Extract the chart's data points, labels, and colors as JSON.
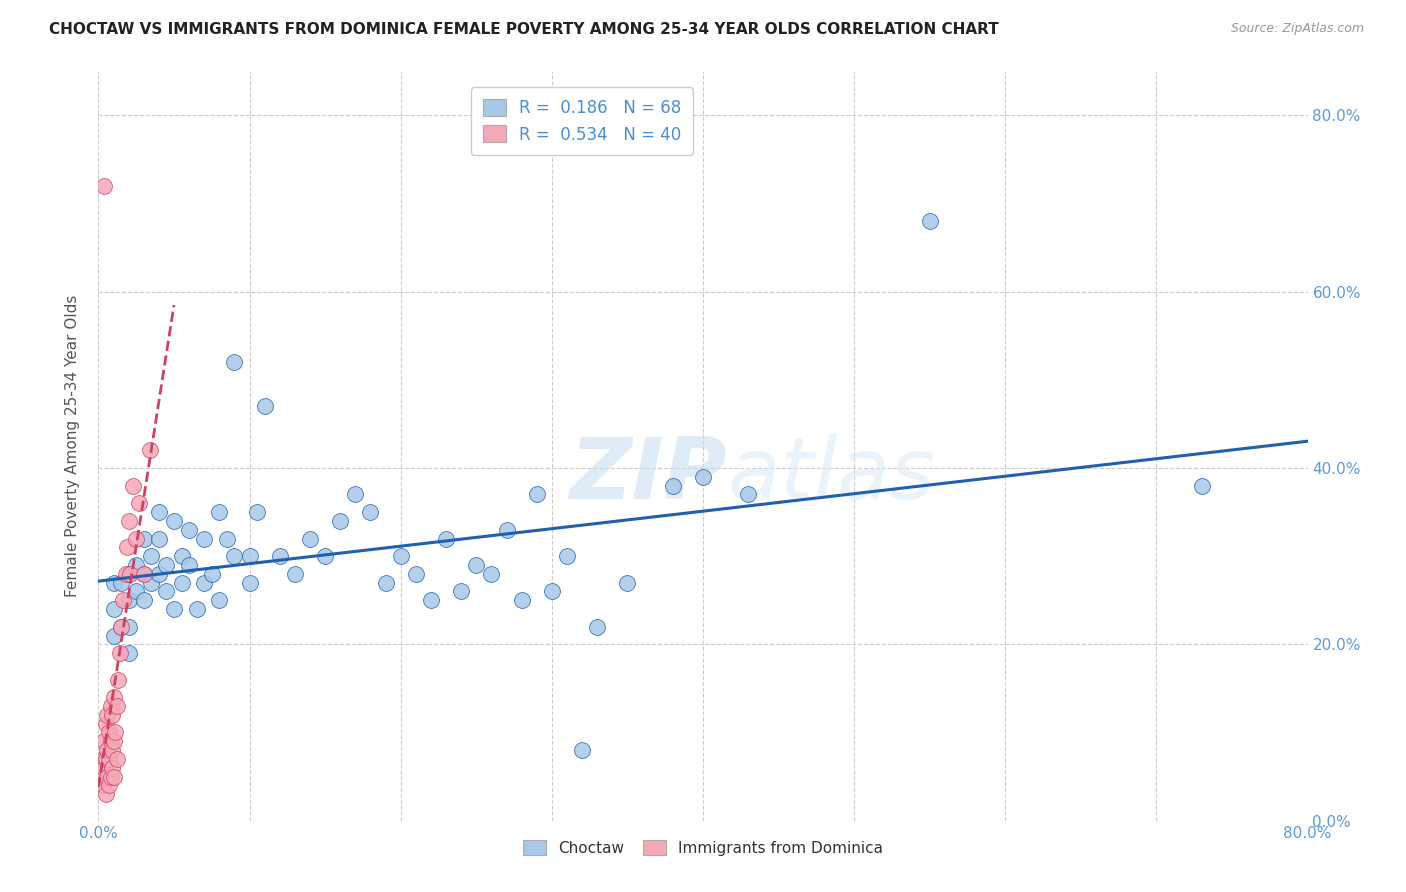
{
  "title": "CHOCTAW VS IMMIGRANTS FROM DOMINICA FEMALE POVERTY AMONG 25-34 YEAR OLDS CORRELATION CHART",
  "source": "Source: ZipAtlas.com",
  "ylabel": "Female Poverty Among 25-34 Year Olds",
  "xmin": 0.0,
  "xmax": 0.8,
  "ymin": 0.0,
  "ymax": 0.85,
  "blue_color": "#A8C8E8",
  "pink_color": "#F4A8B8",
  "blue_line_color": "#2060B0",
  "pink_line_color": "#D04060",
  "legend_R1": "0.186",
  "legend_N1": "68",
  "legend_R2": "0.534",
  "legend_N2": "40",
  "watermark_zip": "ZIP",
  "watermark_atlas": "atlas",
  "choctaw_x": [
    0.01,
    0.01,
    0.01,
    0.015,
    0.015,
    0.02,
    0.02,
    0.02,
    0.02,
    0.025,
    0.025,
    0.03,
    0.03,
    0.03,
    0.035,
    0.035,
    0.04,
    0.04,
    0.04,
    0.045,
    0.045,
    0.05,
    0.05,
    0.055,
    0.055,
    0.06,
    0.06,
    0.065,
    0.07,
    0.07,
    0.075,
    0.08,
    0.08,
    0.085,
    0.09,
    0.09,
    0.1,
    0.1,
    0.105,
    0.11,
    0.12,
    0.13,
    0.14,
    0.15,
    0.16,
    0.17,
    0.18,
    0.19,
    0.2,
    0.21,
    0.22,
    0.23,
    0.24,
    0.25,
    0.26,
    0.27,
    0.28,
    0.29,
    0.3,
    0.31,
    0.32,
    0.33,
    0.35,
    0.38,
    0.4,
    0.43,
    0.55,
    0.73
  ],
  "choctaw_y": [
    0.27,
    0.24,
    0.21,
    0.27,
    0.22,
    0.28,
    0.25,
    0.22,
    0.19,
    0.29,
    0.26,
    0.32,
    0.28,
    0.25,
    0.3,
    0.27,
    0.35,
    0.32,
    0.28,
    0.29,
    0.26,
    0.34,
    0.24,
    0.3,
    0.27,
    0.33,
    0.29,
    0.24,
    0.32,
    0.27,
    0.28,
    0.35,
    0.25,
    0.32,
    0.3,
    0.52,
    0.27,
    0.3,
    0.35,
    0.47,
    0.3,
    0.28,
    0.32,
    0.3,
    0.34,
    0.37,
    0.35,
    0.27,
    0.3,
    0.28,
    0.25,
    0.32,
    0.26,
    0.29,
    0.28,
    0.33,
    0.25,
    0.37,
    0.26,
    0.3,
    0.08,
    0.22,
    0.27,
    0.38,
    0.39,
    0.37,
    0.68,
    0.38
  ],
  "dominica_x": [
    0.002,
    0.003,
    0.003,
    0.004,
    0.004,
    0.005,
    0.005,
    0.005,
    0.006,
    0.006,
    0.006,
    0.007,
    0.007,
    0.007,
    0.008,
    0.008,
    0.008,
    0.009,
    0.009,
    0.009,
    0.01,
    0.01,
    0.01,
    0.011,
    0.012,
    0.012,
    0.013,
    0.014,
    0.015,
    0.016,
    0.018,
    0.019,
    0.02,
    0.021,
    0.023,
    0.025,
    0.027,
    0.03,
    0.034,
    0.004
  ],
  "dominica_y": [
    0.05,
    0.04,
    0.07,
    0.06,
    0.09,
    0.03,
    0.07,
    0.11,
    0.05,
    0.08,
    0.12,
    0.04,
    0.07,
    0.1,
    0.05,
    0.09,
    0.13,
    0.06,
    0.08,
    0.12,
    0.05,
    0.09,
    0.14,
    0.1,
    0.07,
    0.13,
    0.16,
    0.19,
    0.22,
    0.25,
    0.28,
    0.31,
    0.34,
    0.28,
    0.38,
    0.32,
    0.36,
    0.28,
    0.42,
    0.72
  ]
}
